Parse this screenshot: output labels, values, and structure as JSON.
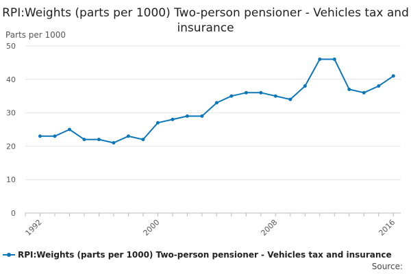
{
  "chart_data": {
    "type": "line",
    "title": "RPI:Weights (parts per 1000) Two-person pensioner - Vehicles tax and insurance",
    "ylabel": "Parts per 1000",
    "xlabel": "",
    "ylim": [
      0,
      50
    ],
    "yticks": [
      0,
      10,
      20,
      30,
      40,
      50
    ],
    "xlim": [
      1991,
      2016.5
    ],
    "xticks": [
      1992,
      2000,
      2008,
      2016
    ],
    "grid": true,
    "legend_position": "bottom",
    "series": [
      {
        "name": "RPI:Weights (parts per 1000) Two-person pensioner - Vehicles tax and insurance",
        "color": "#0b77b8",
        "x": [
          1992,
          1993,
          1994,
          1995,
          1996,
          1997,
          1998,
          1999,
          2000,
          2001,
          2002,
          2003,
          2004,
          2005,
          2006,
          2007,
          2008,
          2009,
          2010,
          2011,
          2012,
          2013,
          2014,
          2015,
          2016
        ],
        "values": [
          23,
          23,
          25,
          22,
          22,
          21,
          23,
          22,
          27,
          28,
          29,
          29,
          33,
          35,
          36,
          36,
          35,
          34,
          38,
          46,
          46,
          37,
          36,
          38,
          41
        ]
      }
    ]
  },
  "source_label": "Source:"
}
